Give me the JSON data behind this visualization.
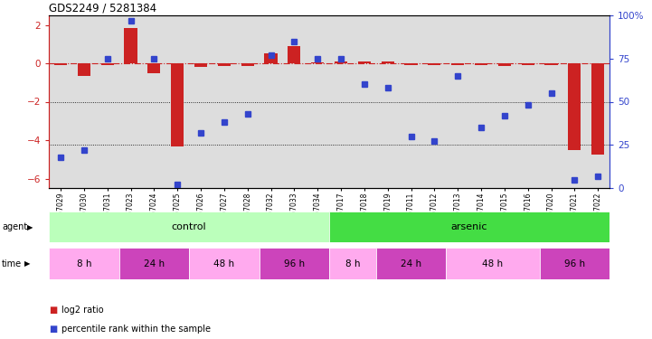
{
  "title": "GDS2249 / 5281384",
  "samples": [
    "GSM67029",
    "GSM67030",
    "GSM67031",
    "GSM67023",
    "GSM67024",
    "GSM67025",
    "GSM67026",
    "GSM67027",
    "GSM67028",
    "GSM67032",
    "GSM67033",
    "GSM67034",
    "GSM67017",
    "GSM67018",
    "GSM67019",
    "GSM67011",
    "GSM67012",
    "GSM67013",
    "GSM67014",
    "GSM67015",
    "GSM67016",
    "GSM67020",
    "GSM67021",
    "GSM67022"
  ],
  "log2ratio": [
    -0.08,
    -0.65,
    -0.08,
    1.85,
    -0.5,
    -4.35,
    -0.18,
    -0.12,
    -0.15,
    0.5,
    0.9,
    0.05,
    0.08,
    0.1,
    0.1,
    -0.08,
    -0.08,
    -0.1,
    -0.08,
    -0.15,
    -0.1,
    -0.08,
    -4.5,
    -4.75
  ],
  "percentile": [
    18,
    22,
    75,
    97,
    75,
    2,
    32,
    38,
    43,
    77,
    85,
    75,
    75,
    60,
    58,
    30,
    27,
    65,
    35,
    42,
    48,
    55,
    5,
    7
  ],
  "agent_groups": [
    {
      "label": "control",
      "start": 0,
      "end": 11,
      "color": "#bbffbb"
    },
    {
      "label": "arsenic",
      "start": 12,
      "end": 23,
      "color": "#44dd44"
    }
  ],
  "time_groups": [
    {
      "label": "8 h",
      "start": 0,
      "end": 2,
      "color": "#ffaaee"
    },
    {
      "label": "24 h",
      "start": 3,
      "end": 5,
      "color": "#cc44bb"
    },
    {
      "label": "48 h",
      "start": 6,
      "end": 8,
      "color": "#ffaaee"
    },
    {
      "label": "96 h",
      "start": 9,
      "end": 11,
      "color": "#cc44bb"
    },
    {
      "label": "8 h",
      "start": 12,
      "end": 13,
      "color": "#ffaaee"
    },
    {
      "label": "24 h",
      "start": 14,
      "end": 16,
      "color": "#cc44bb"
    },
    {
      "label": "48 h",
      "start": 17,
      "end": 20,
      "color": "#ffaaee"
    },
    {
      "label": "96 h",
      "start": 21,
      "end": 23,
      "color": "#cc44bb"
    }
  ],
  "bar_color": "#cc2222",
  "dot_color": "#3344cc",
  "ylim_left": [
    -6.5,
    2.5
  ],
  "ylim_right": [
    0,
    100
  ],
  "yticks_left": [
    -6,
    -4,
    -2,
    0,
    2
  ],
  "yticks_right": [
    0,
    25,
    50,
    75,
    100
  ],
  "background_color": "#ffffff",
  "sample_bg": "#dddddd"
}
